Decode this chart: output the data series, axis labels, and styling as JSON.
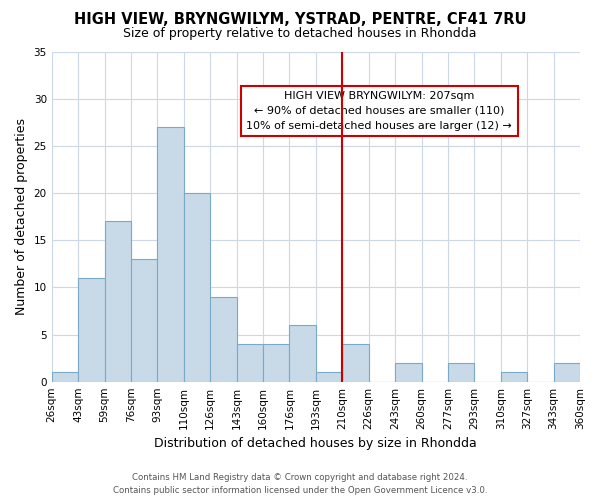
{
  "title": "HIGH VIEW, BRYNGWILYM, YSTRAD, PENTRE, CF41 7RU",
  "subtitle": "Size of property relative to detached houses in Rhondda",
  "xlabel": "Distribution of detached houses by size in Rhondda",
  "ylabel": "Number of detached properties",
  "bin_labels": [
    "26sqm",
    "43sqm",
    "59sqm",
    "76sqm",
    "93sqm",
    "110sqm",
    "126sqm",
    "143sqm",
    "160sqm",
    "176sqm",
    "193sqm",
    "210sqm",
    "226sqm",
    "243sqm",
    "260sqm",
    "277sqm",
    "293sqm",
    "310sqm",
    "327sqm",
    "343sqm",
    "360sqm"
  ],
  "bar_values": [
    1,
    11,
    17,
    13,
    27,
    20,
    9,
    4,
    4,
    6,
    1,
    4,
    0,
    2,
    0,
    2,
    0,
    1,
    0,
    2
  ],
  "bar_color": "#c8d9e8",
  "bar_edgecolor": "#7aaac8",
  "vline_x": 11,
  "vline_color": "#cc0000",
  "ylim": [
    0,
    35
  ],
  "yticks": [
    0,
    5,
    10,
    15,
    20,
    25,
    30,
    35
  ],
  "annotation_title": "HIGH VIEW BRYNGWILYM: 207sqm",
  "annotation_line1": "← 90% of detached houses are smaller (110)",
  "annotation_line2": "10% of semi-detached houses are larger (12) →",
  "footer_line1": "Contains HM Land Registry data © Crown copyright and database right 2024.",
  "footer_line2": "Contains public sector information licensed under the Open Government Licence v3.0.",
  "background_color": "#ffffff",
  "grid_color": "#ccd8e8"
}
